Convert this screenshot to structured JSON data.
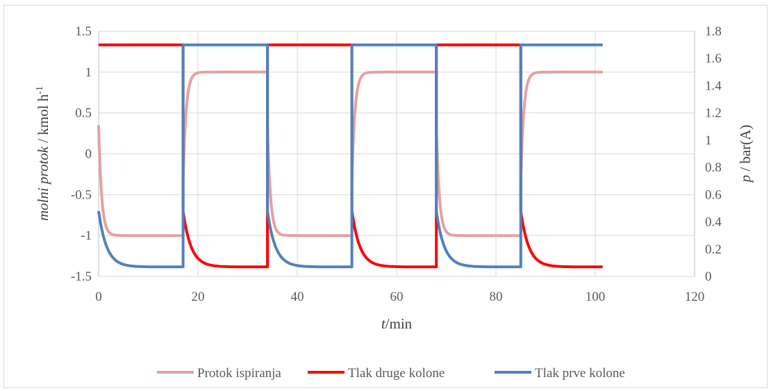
{
  "chart_data": {
    "type": "line",
    "xlabel_italic": "t",
    "xlabel_rest": "/min",
    "ylabel_left_italic": "molni protok",
    "ylabel_left_rest": " / kmol h",
    "ylabel_left_sup": "-1",
    "ylabel_right_italic": "p",
    "ylabel_right_rest": " / bar(A)",
    "xlim": [
      0,
      120
    ],
    "ylim_left": [
      -1.5,
      1.5
    ],
    "ylim_right": [
      0,
      1.8
    ],
    "x_ticks": [
      "0",
      "20",
      "40",
      "60",
      "80",
      "100",
      "120"
    ],
    "y_left_ticks": [
      "-1.5",
      "-1",
      "-0.5",
      "0",
      "0.5",
      "1",
      "1.5"
    ],
    "y_right_ticks": [
      "0",
      "0.2",
      "0.4",
      "0.6",
      "0.8",
      "1",
      "1.2",
      "1.4",
      "1.6",
      "1.8"
    ],
    "grid": true,
    "legend_position": "bottom",
    "cycle_switch_times_min": [
      0,
      17,
      34,
      51,
      68,
      85,
      101.5
    ],
    "series": [
      {
        "name": "Protok ispiranja",
        "axis": "left",
        "color": "#e6a0a0",
        "plateau_values": [
          -1.0,
          1.0,
          -1.0,
          1.0,
          -1.0,
          1.0
        ]
      },
      {
        "name": "Tlak druge kolone",
        "axis": "right",
        "color": "#ff0000",
        "plateau_values": [
          1.7,
          0.07,
          1.7,
          0.07,
          1.7,
          0.07
        ]
      },
      {
        "name": "Tlak prve kolone",
        "axis": "right",
        "color": "#4f81bd",
        "plateau_values": [
          0.07,
          1.7,
          0.07,
          1.7,
          0.07,
          1.7
        ]
      }
    ]
  }
}
